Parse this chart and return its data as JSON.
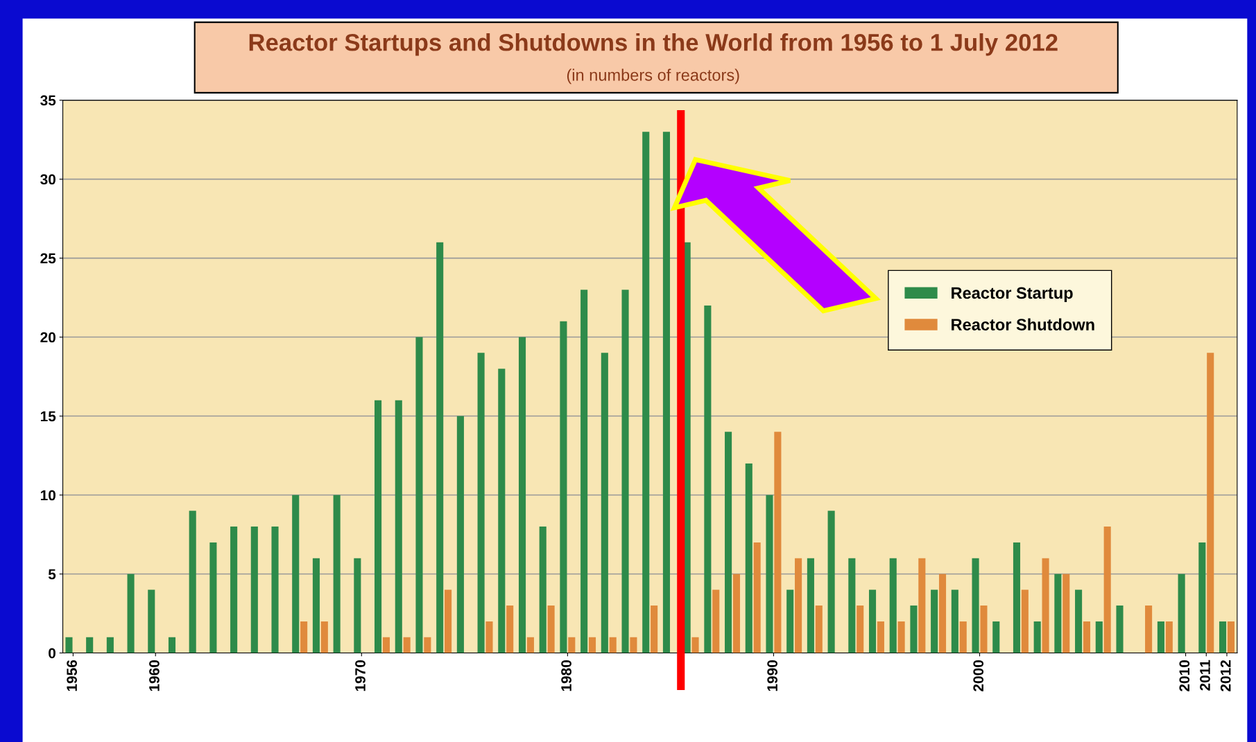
{
  "chart_data": {
    "type": "bar",
    "title": "Reactor Startups and Shutdowns in the World from 1956 to 1 July 2012",
    "subtitle": "(in numbers of reactors)",
    "x": [
      1956,
      1957,
      1958,
      1959,
      1960,
      1961,
      1962,
      1963,
      1964,
      1965,
      1966,
      1967,
      1968,
      1969,
      1970,
      1971,
      1972,
      1973,
      1974,
      1975,
      1976,
      1977,
      1978,
      1979,
      1980,
      1981,
      1982,
      1983,
      1984,
      1985,
      1986,
      1987,
      1988,
      1989,
      1990,
      1991,
      1992,
      1993,
      1994,
      1995,
      1996,
      1997,
      1998,
      1999,
      2000,
      2001,
      2002,
      2003,
      2004,
      2005,
      2006,
      2007,
      2008,
      2009,
      2010,
      2011,
      2012
    ],
    "series": [
      {
        "name": "Reactor Startup",
        "color": "#2e8b4a",
        "values": [
          1,
          1,
          1,
          5,
          4,
          1,
          9,
          7,
          8,
          8,
          8,
          10,
          6,
          10,
          6,
          16,
          16,
          20,
          26,
          15,
          19,
          18,
          20,
          8,
          21,
          23,
          19,
          23,
          33,
          33,
          26,
          22,
          14,
          12,
          10,
          4,
          6,
          9,
          6,
          4,
          6,
          3,
          4,
          4,
          6,
          2,
          7,
          2,
          5,
          4,
          2,
          3,
          0,
          2,
          5,
          7,
          2
        ]
      },
      {
        "name": "Reactor Shutdown",
        "color": "#e08a3c",
        "values": [
          0,
          0,
          0,
          0,
          0,
          0,
          0,
          0,
          0,
          0,
          0,
          2,
          2,
          0,
          0,
          1,
          1,
          1,
          4,
          0,
          2,
          3,
          1,
          3,
          1,
          1,
          1,
          1,
          3,
          null,
          1,
          4,
          5,
          7,
          14,
          6,
          3,
          0,
          3,
          2,
          2,
          6,
          5,
          2,
          3,
          0,
          4,
          6,
          5,
          2,
          8,
          0,
          3,
          2,
          0,
          19,
          2
        ]
      }
    ],
    "xlim": [
      1955.5,
      2012.5
    ],
    "xticks": [
      1956,
      1960,
      1970,
      1980,
      1990,
      2000,
      2010,
      2011,
      2012
    ],
    "ylim": [
      0,
      35
    ],
    "yticks": [
      0,
      5,
      10,
      15,
      20,
      25,
      30,
      35
    ],
    "grid": "y",
    "legend": "right",
    "ref_lines": [
      {
        "axis": "x",
        "value": 1985.5,
        "label": null,
        "color": "#ff0000"
      }
    ]
  }
}
